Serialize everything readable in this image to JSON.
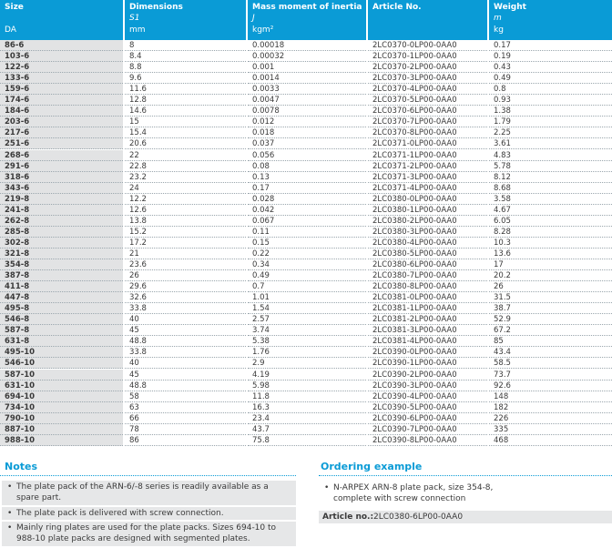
{
  "table": {
    "columns": [
      {
        "title": "Size",
        "unit": "DA"
      },
      {
        "title": "Dimensions",
        "symbol": "S1",
        "unit": "mm"
      },
      {
        "title": "Mass moment of inertia",
        "symbol": "J",
        "unit": "kgm²"
      },
      {
        "title": "Article No."
      },
      {
        "title": "Weight",
        "symbol": "m",
        "unit": "kg"
      }
    ],
    "rows": [
      [
        "86-6",
        8,
        0.00018,
        "2LC0370-0LP00-0AA0",
        0.17
      ],
      [
        "103-6",
        8.4,
        0.00032,
        "2LC0370-1LP00-0AA0",
        0.19
      ],
      [
        "122-6",
        8.8,
        0.001,
        "2LC0370-2LP00-0AA0",
        0.43
      ],
      [
        "133-6",
        9.6,
        0.0014,
        "2LC0370-3LP00-0AA0",
        0.49
      ],
      [
        "159-6",
        11.6,
        0.0033,
        "2LC0370-4LP00-0AA0",
        0.8
      ],
      [
        "174-6",
        12.8,
        0.0047,
        "2LC0370-5LP00-0AA0",
        0.93
      ],
      [
        "184-6",
        14.6,
        0.0078,
        "2LC0370-6LP00-0AA0",
        1.38
      ],
      [
        "203-6",
        15,
        0.012,
        "2LC0370-7LP00-0AA0",
        1.79
      ],
      [
        "217-6",
        15.4,
        0.018,
        "2LC0370-8LP00-0AA0",
        2.25
      ],
      [
        "251-6",
        20.6,
        0.037,
        "2LC0371-0LP00-0AA0",
        3.61
      ],
      [
        "268-6",
        22,
        0.056,
        "2LC0371-1LP00-0AA0",
        4.83
      ],
      [
        "291-6",
        22.8,
        0.08,
        "2LC0371-2LP00-0AA0",
        5.78
      ],
      [
        "318-6",
        23.2,
        0.13,
        "2LC0371-3LP00-0AA0",
        8.12
      ],
      [
        "343-6",
        24,
        0.17,
        "2LC0371-4LP00-0AA0",
        8.68
      ],
      [
        "219-8",
        12.2,
        0.028,
        "2LC0380-0LP00-0AA0",
        3.58
      ],
      [
        "241-8",
        12.6,
        0.042,
        "2LC0380-1LP00-0AA0",
        4.67
      ],
      [
        "262-8",
        13.8,
        0.067,
        "2LC0380-2LP00-0AA0",
        6.05
      ],
      [
        "285-8",
        15.2,
        0.11,
        "2LC0380-3LP00-0AA0",
        8.28
      ],
      [
        "302-8",
        17.2,
        0.15,
        "2LC0380-4LP00-0AA0",
        10.3
      ],
      [
        "321-8",
        21,
        0.22,
        "2LC0380-5LP00-0AA0",
        13.6
      ],
      [
        "354-8",
        23.6,
        0.34,
        "2LC0380-6LP00-0AA0",
        17
      ],
      [
        "387-8",
        26,
        0.49,
        "2LC0380-7LP00-0AA0",
        20.2
      ],
      [
        "411-8",
        29.6,
        0.7,
        "2LC0380-8LP00-0AA0",
        26
      ],
      [
        "447-8",
        32.6,
        1.01,
        "2LC0381-0LP00-0AA0",
        31.5
      ],
      [
        "495-8",
        33.8,
        1.54,
        "2LC0381-1LP00-0AA0",
        38.7
      ],
      [
        "546-8",
        40,
        2.57,
        "2LC0381-2LP00-0AA0",
        52.9
      ],
      [
        "587-8",
        45,
        3.74,
        "2LC0381-3LP00-0AA0",
        67.2
      ],
      [
        "631-8",
        48.8,
        5.38,
        "2LC0381-4LP00-0AA0",
        85
      ],
      [
        "495-10",
        33.8,
        1.76,
        "2LC0390-0LP00-0AA0",
        43.4
      ],
      [
        "546-10",
        40,
        2.9,
        "2LC0390-1LP00-0AA0",
        58.5
      ],
      [
        "587-10",
        45,
        4.19,
        "2LC0390-2LP00-0AA0",
        73.7
      ],
      [
        "631-10",
        48.8,
        5.98,
        "2LC0390-3LP00-0AA0",
        92.6
      ],
      [
        "694-10",
        58,
        11.8,
        "2LC0390-4LP00-0AA0",
        148
      ],
      [
        "734-10",
        63,
        16.3,
        "2LC0390-5LP00-0AA0",
        182
      ],
      [
        "790-10",
        66,
        23.4,
        "2LC0390-6LP00-0AA0",
        226
      ],
      [
        "887-10",
        78,
        43.7,
        "2LC0390-7LP00-0AA0",
        335
      ],
      [
        "988-10",
        86,
        75.8,
        "2LC0390-8LP00-0AA0",
        468
      ]
    ]
  },
  "notes": {
    "title": "Notes",
    "items": [
      "The plate pack of the ARN-6/-8 series is readily available as a spare part.",
      "The plate pack is delivered with screw connection.",
      "Mainly ring plates are used for the plate packs. Sizes 694-10 to 988-10 plate packs are designed with segmented plates."
    ]
  },
  "ordering": {
    "title": "Ordering example",
    "item": "N-ARPEX ARN-8 plate pack, size 354-8, complete with screw connection",
    "article_label": "Article no.:",
    "article_value": "2LC0380-6LP00-0AA0"
  }
}
